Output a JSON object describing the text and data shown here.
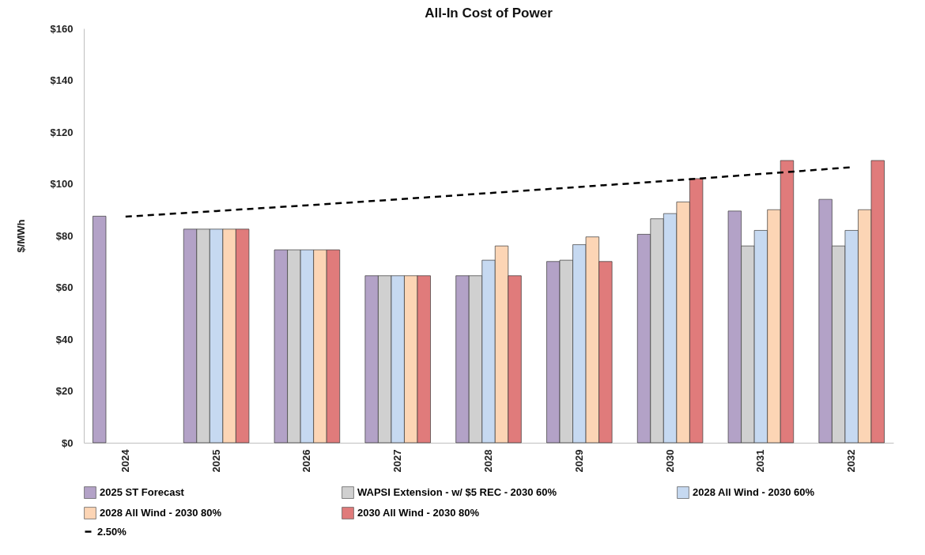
{
  "chart_data": {
    "type": "bar",
    "title": "All-In Cost of Power",
    "ylabel": "$/MWh",
    "categories": [
      "2024",
      "2025",
      "2026",
      "2027",
      "2028",
      "2029",
      "2030",
      "2031",
      "2032"
    ],
    "ylim": [
      0,
      160
    ],
    "yticks": [
      {
        "value": 0,
        "label": "$0"
      },
      {
        "value": 20,
        "label": "$20"
      },
      {
        "value": 40,
        "label": "$40"
      },
      {
        "value": 60,
        "label": "$60"
      },
      {
        "value": 80,
        "label": "$80"
      },
      {
        "value": 100,
        "label": "$100"
      },
      {
        "value": 120,
        "label": "$120"
      },
      {
        "value": 140,
        "label": "$140"
      },
      {
        "value": 160,
        "label": "$160"
      }
    ],
    "grid": false,
    "legend": "bottom",
    "series": [
      {
        "name": "2025 ST Forecast",
        "color": "#b3a2c7",
        "values": [
          87.5,
          82.5,
          74.5,
          64.5,
          64.5,
          70,
          80.5,
          89.5,
          94
        ]
      },
      {
        "name": "WAPSI Extension - w/ $5 REC - 2030 60%",
        "color": "#d0d0d0",
        "values": [
          null,
          82.5,
          74.5,
          64.5,
          64.5,
          70.5,
          86.5,
          76,
          76
        ]
      },
      {
        "name": "2028 All Wind - 2030 60%",
        "color": "#c6d9f1",
        "values": [
          null,
          82.5,
          74.5,
          64.5,
          70.5,
          76.5,
          88.5,
          82,
          82
        ]
      },
      {
        "name": "2028 All Wind - 2030 80%",
        "color": "#fcd5b5",
        "values": [
          null,
          82.5,
          74.5,
          64.5,
          76,
          79.5,
          93,
          90,
          90
        ]
      },
      {
        "name": "2030 All Wind - 2030 80%",
        "color": "#e07b7b",
        "values": [
          null,
          82.5,
          74.5,
          64.5,
          64.5,
          70,
          102,
          109,
          109
        ]
      },
      {
        "name": "2.50%",
        "type": "line",
        "color": "#000000",
        "line_style": "dashed",
        "values": [
          87.3,
          89.5,
          91.7,
          94,
          96.4,
          98.8,
          101.2,
          103.8,
          106.4
        ]
      }
    ]
  }
}
